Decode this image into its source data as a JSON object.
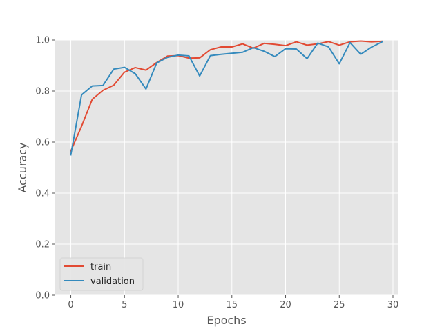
{
  "chart_data": {
    "type": "line",
    "title": "",
    "xlabel": "Epochs",
    "ylabel": "Accuracy",
    "xlim": [
      -1.45,
      30.45
    ],
    "ylim": [
      0.0,
      1.0
    ],
    "xticks": [
      0,
      5,
      10,
      15,
      20,
      25,
      30
    ],
    "xtick_labels": [
      "0",
      "5",
      "10",
      "15",
      "20",
      "25",
      "30"
    ],
    "yticks": [
      0.0,
      0.2,
      0.4,
      0.6,
      0.8,
      1.0
    ],
    "ytick_labels": [
      "0.0",
      "0.2",
      "0.4",
      "0.6",
      "0.8",
      "1.0"
    ],
    "grid": true,
    "legend_position": "lower-left",
    "x": [
      0,
      1,
      2,
      3,
      4,
      5,
      6,
      7,
      8,
      9,
      10,
      11,
      12,
      13,
      14,
      15,
      16,
      17,
      18,
      19,
      20,
      21,
      22,
      23,
      24,
      25,
      26,
      27,
      28,
      29
    ],
    "series": [
      {
        "name": "train",
        "color": "#E24A33",
        "values": [
          0.565,
          0.662,
          0.768,
          0.803,
          0.823,
          0.874,
          0.892,
          0.882,
          0.912,
          0.937,
          0.939,
          0.929,
          0.93,
          0.962,
          0.973,
          0.973,
          0.985,
          0.968,
          0.987,
          0.983,
          0.978,
          0.993,
          0.98,
          0.985,
          0.994,
          0.98,
          0.993,
          0.996,
          0.993,
          0.995
        ]
      },
      {
        "name": "validation",
        "color": "#348ABD",
        "values": [
          0.55,
          0.785,
          0.82,
          0.822,
          0.886,
          0.893,
          0.868,
          0.808,
          0.91,
          0.932,
          0.941,
          0.938,
          0.859,
          0.939,
          0.944,
          0.948,
          0.952,
          0.97,
          0.956,
          0.935,
          0.966,
          0.965,
          0.927,
          0.988,
          0.973,
          0.907,
          0.99,
          0.944,
          0.972,
          0.993
        ]
      }
    ]
  }
}
